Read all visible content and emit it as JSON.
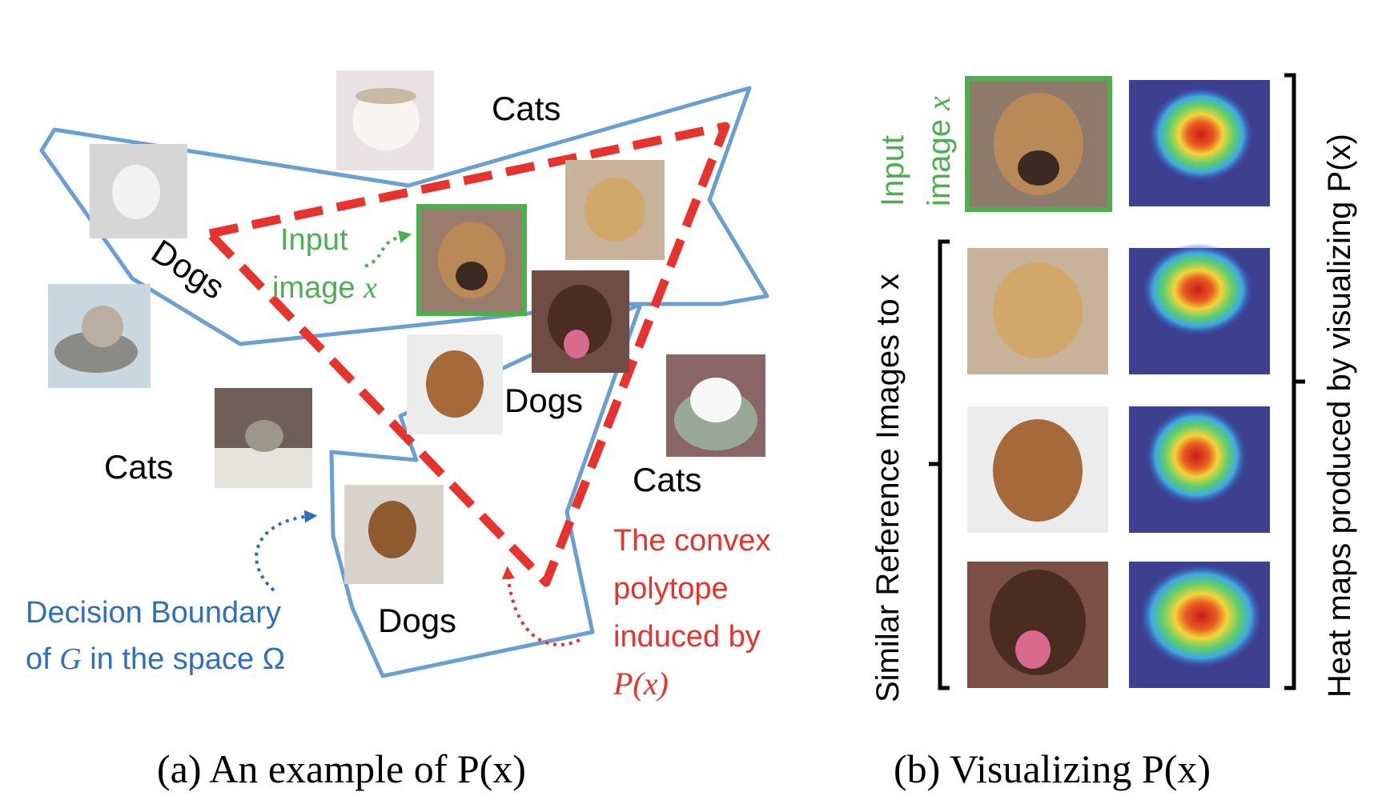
{
  "panel_a": {
    "region_labels": {
      "cats_top": "Cats",
      "dogs_left": "Dogs",
      "dogs_center": "Dogs",
      "cats_left": "Cats",
      "cats_right": "Cats",
      "dogs_bottom": "Dogs"
    },
    "input_label": {
      "line1": "Input",
      "line2_prefix": "image ",
      "var": "x"
    },
    "decision_boundary_label": {
      "line1": "Decision Boundary",
      "line2_prefix": "of ",
      "var": "G",
      "line2_suffix": " in the space Ω"
    },
    "polytope_label": {
      "line1": "The convex",
      "line2": "polytope",
      "line3": "induced by",
      "line4": "P(x)"
    },
    "caption": "(a)  An example of P(x)"
  },
  "panel_b": {
    "input_label": {
      "line1": "Input",
      "line2_prefix": "image ",
      "var": "x"
    },
    "similar_label": "Similar Reference Images to x",
    "heatmap_label": "Heat maps produced by visualizing P(x)",
    "caption": "(b)  Visualizing P(x)"
  },
  "colors": {
    "decision_boundary": "#6a9fd4",
    "polytope": "#e8322d",
    "input_highlight": "#4caf50",
    "annotation_blue": "#2f6fbd",
    "annotation_green": "#4caf50",
    "annotation_red": "#e8322d",
    "text": "#000000"
  },
  "icons": {
    "photo": "photo-thumbnail-icon",
    "heatmap": "heatmap-thumbnail-icon"
  }
}
